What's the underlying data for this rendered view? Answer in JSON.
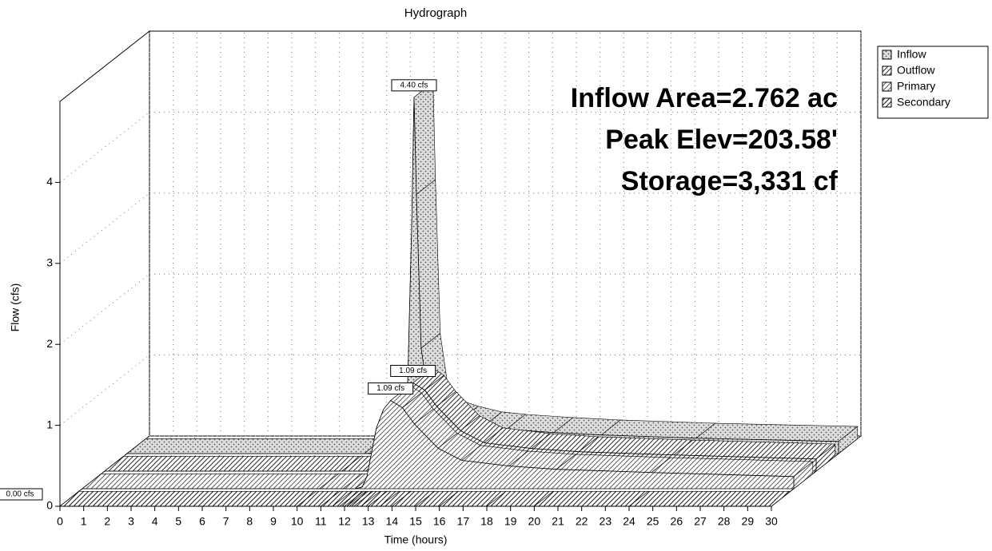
{
  "chart_data": {
    "type": "hydrograph-3d",
    "title": "Hydrograph",
    "x_label": "Time  (hours)",
    "y_label": "Flow  (cfs)",
    "annotations": [
      "Inflow Area=2.762 ac",
      "Peak Elev=203.58'",
      "Storage=3,331 cf"
    ],
    "x": [
      0,
      10,
      11,
      11.5,
      11.8,
      12,
      12.1,
      12.2,
      12.4,
      12.7,
      13,
      13.5,
      14,
      15,
      16,
      18,
      20,
      24,
      30
    ],
    "series": [
      {
        "name": "Inflow",
        "color": "#555555",
        "pattern": "dots",
        "peak_label": "4.40 cfs",
        "values": [
          0,
          0,
          0.02,
          0.08,
          0.5,
          2.8,
          4.4,
          3.2,
          1.3,
          0.7,
          0.55,
          0.45,
          0.4,
          0.33,
          0.3,
          0.26,
          0.23,
          0.19,
          0.15
        ]
      },
      {
        "name": "Outflow",
        "color": "#333333",
        "pattern": "hatch",
        "peak_label": "1.09 cfs",
        "values": [
          0,
          0,
          0,
          0,
          0.02,
          0.15,
          0.3,
          0.45,
          0.75,
          0.98,
          1.09,
          1.0,
          0.8,
          0.5,
          0.35,
          0.28,
          0.24,
          0.2,
          0.15
        ]
      },
      {
        "name": "Primary",
        "color": "#666666",
        "pattern": "hatch",
        "peak_label": "1.09 cfs",
        "values": [
          0,
          0,
          0,
          0,
          0.02,
          0.15,
          0.3,
          0.45,
          0.75,
          0.98,
          1.09,
          1.0,
          0.8,
          0.5,
          0.35,
          0.28,
          0.24,
          0.2,
          0.15
        ]
      },
      {
        "name": "Secondary",
        "color": "#222222",
        "pattern": "hatch",
        "peak_label": "0.00 cfs",
        "values": [
          0,
          0,
          0,
          0,
          0,
          0,
          0,
          0,
          0,
          0,
          0,
          0,
          0,
          0,
          0,
          0,
          0,
          0,
          0
        ]
      }
    ],
    "xlim": [
      0,
      30
    ],
    "ylim": [
      0,
      5
    ],
    "xticks": [
      0,
      1,
      2,
      3,
      4,
      5,
      6,
      7,
      8,
      9,
      10,
      11,
      12,
      13,
      14,
      15,
      16,
      17,
      18,
      19,
      20,
      21,
      22,
      23,
      24,
      25,
      26,
      27,
      28,
      29,
      30
    ],
    "yticks": [
      0,
      1,
      2,
      3,
      4
    ],
    "grid": true,
    "legend": "right"
  }
}
